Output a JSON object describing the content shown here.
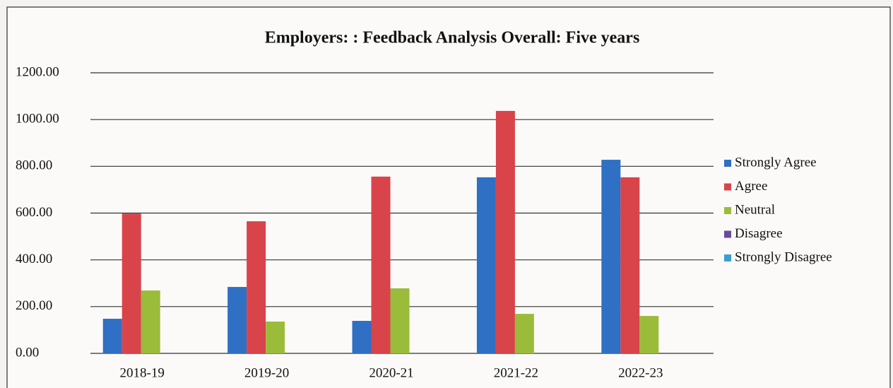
{
  "chart_data": {
    "type": "bar",
    "title": "Employers: : Feedback Analysis Overall: Five years",
    "categories": [
      "2018-19",
      "2019-20",
      "2020-21",
      "2021-22",
      "2022-23"
    ],
    "series": [
      {
        "name": "Strongly Agree",
        "color": "#2f6fc4",
        "values": [
          148,
          284,
          139,
          753,
          828
        ]
      },
      {
        "name": "Agree",
        "color": "#d9434a",
        "values": [
          598,
          565,
          756,
          1037,
          753
        ]
      },
      {
        "name": "Neutral",
        "color": "#9bbb3b",
        "values": [
          269,
          136,
          278,
          169,
          160
        ]
      },
      {
        "name": "Disagree",
        "color": "#6a4a9c",
        "values": [
          0,
          0,
          0,
          0,
          0
        ]
      },
      {
        "name": "Strongly Disagree",
        "color": "#3a9fd0",
        "values": [
          0,
          0,
          0,
          0,
          0
        ]
      }
    ],
    "ylim": [
      0,
      1200
    ],
    "yticks": [
      {
        "value": 0,
        "label": "0.00"
      },
      {
        "value": 200,
        "label": "200.00"
      },
      {
        "value": 400,
        "label": "400.00"
      },
      {
        "value": 600,
        "label": "600.00"
      },
      {
        "value": 800,
        "label": "800.00"
      },
      {
        "value": 1000,
        "label": "1000.00"
      },
      {
        "value": 1200,
        "label": "1200.00"
      }
    ],
    "grid": true,
    "legend": "right"
  }
}
